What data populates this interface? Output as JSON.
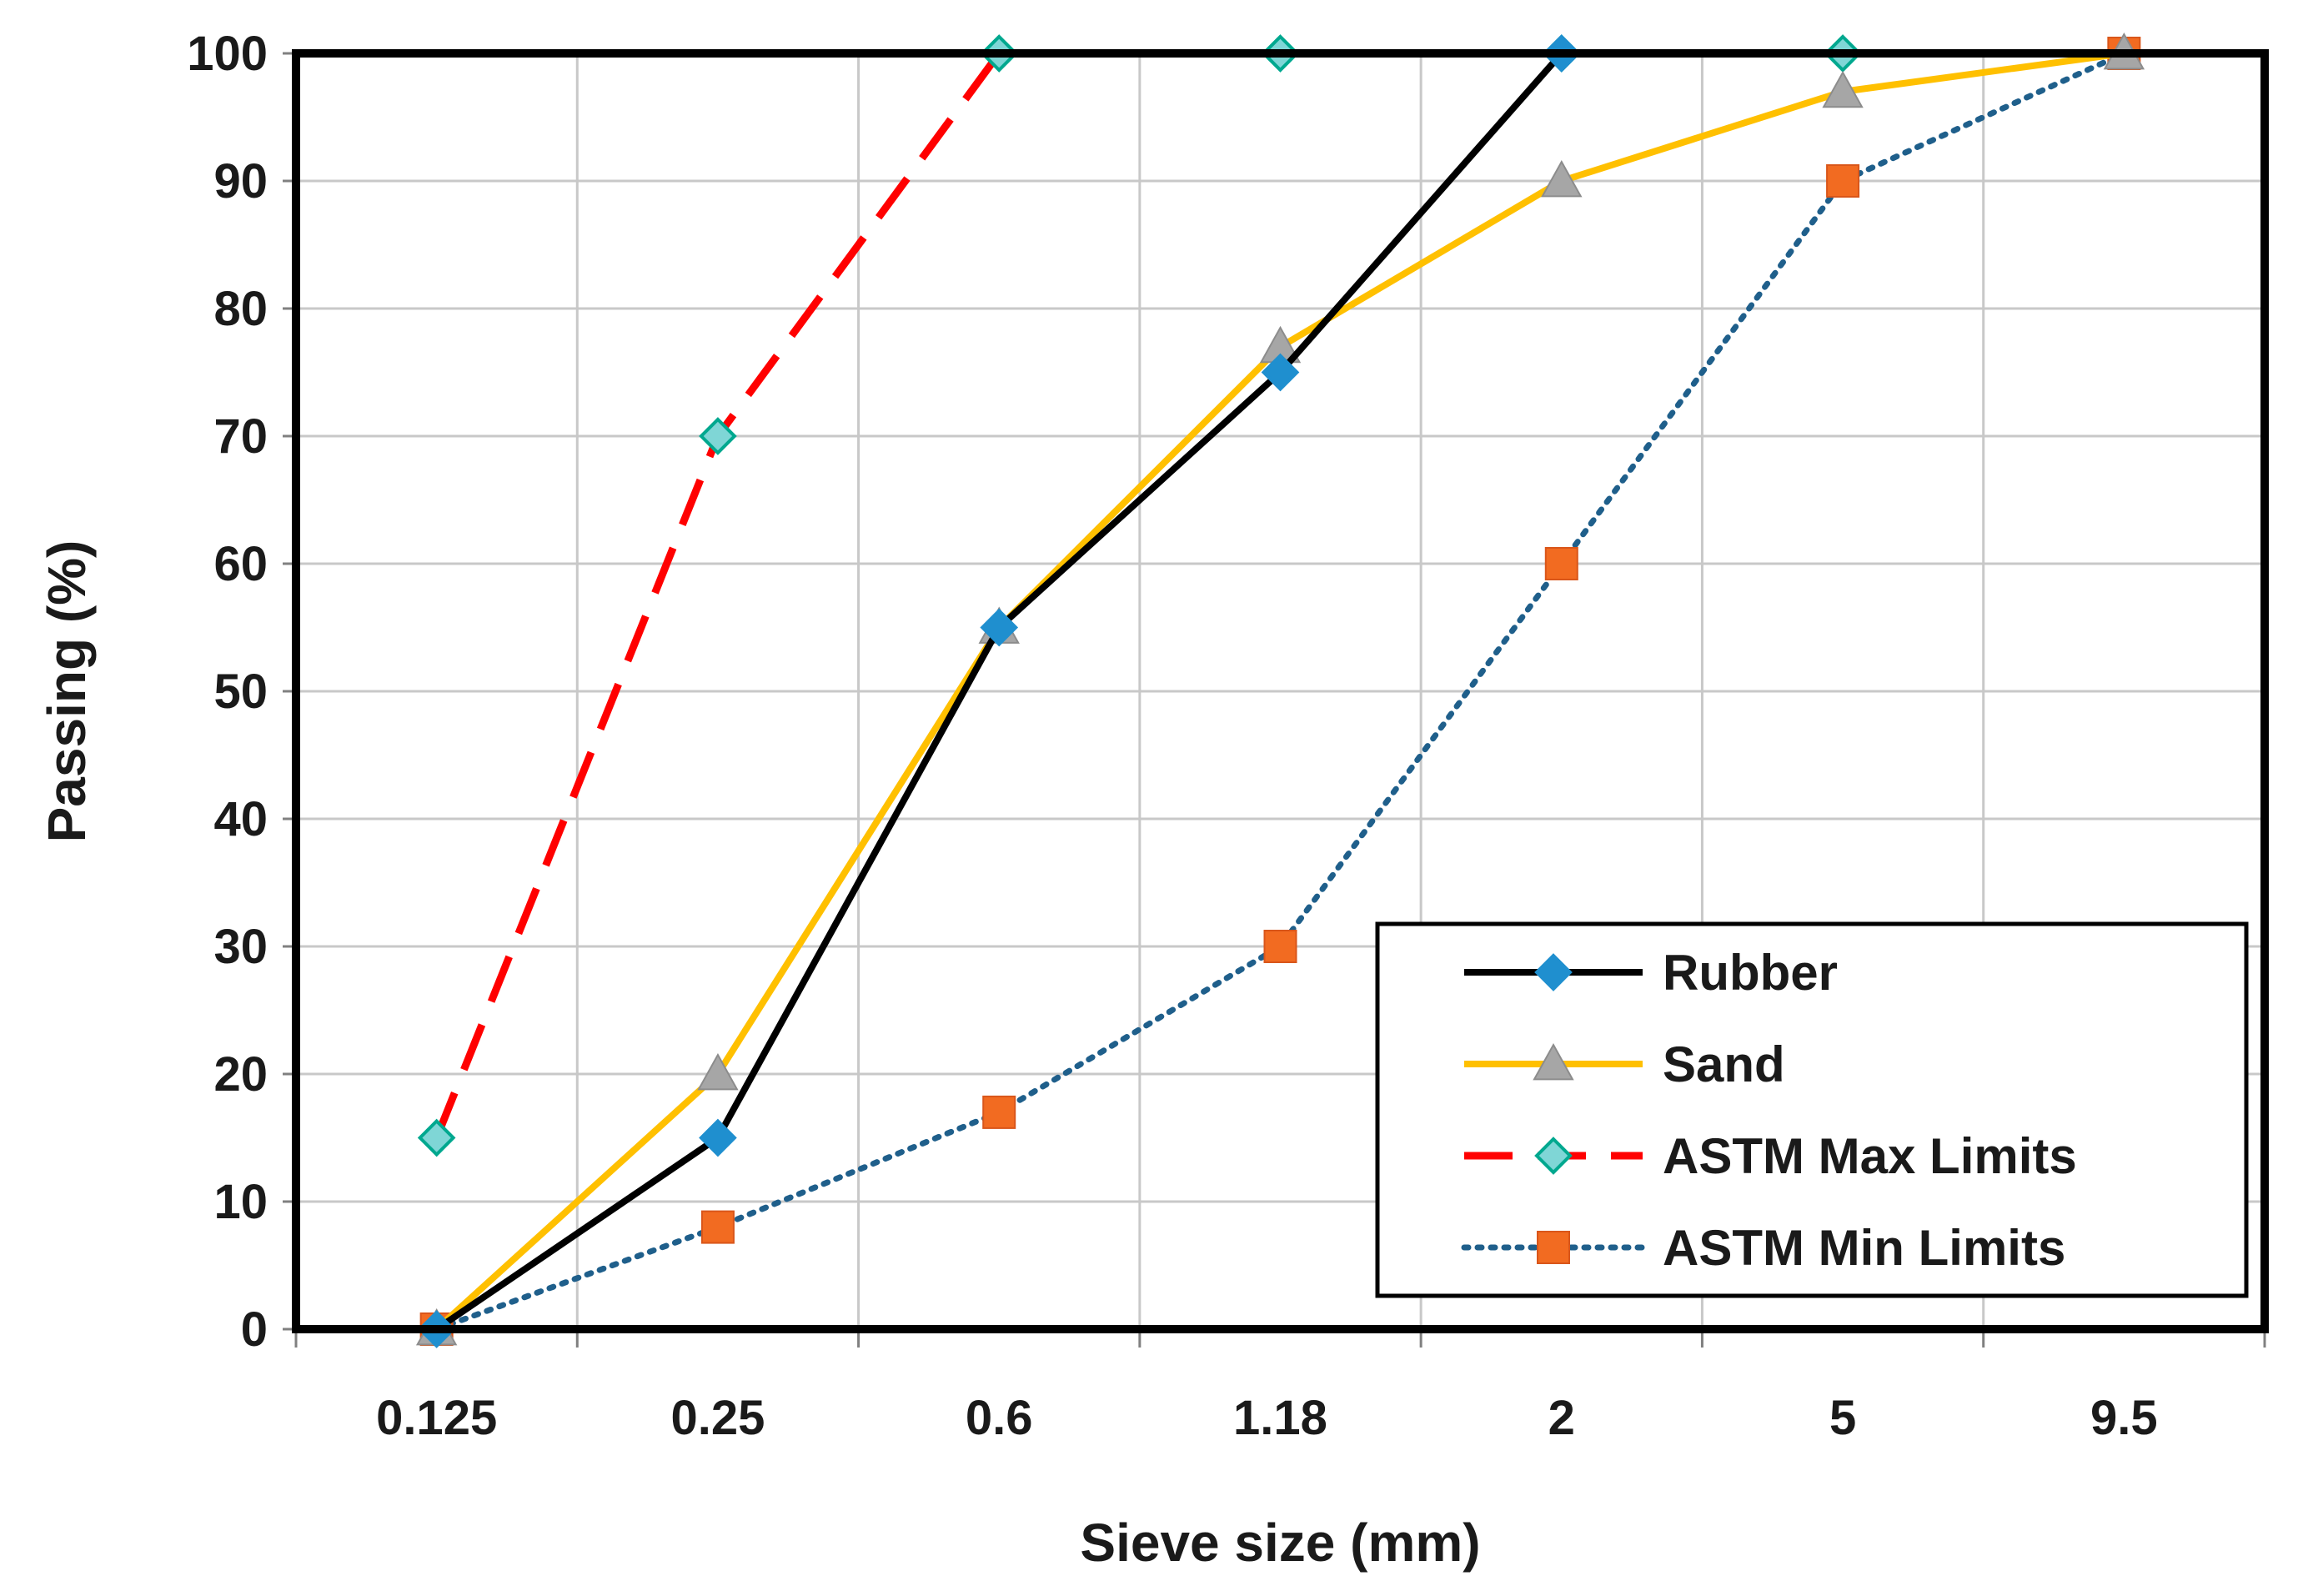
{
  "chart_data": {
    "type": "line",
    "title": "",
    "xlabel": "Sieve size (mm)",
    "ylabel": "Passing (%)",
    "categories": [
      "0.125",
      "0.25",
      "0.6",
      "1.18",
      "2",
      "5",
      "9.5"
    ],
    "ylim": [
      0,
      100
    ],
    "yticks": [
      "0",
      "10",
      "20",
      "30",
      "40",
      "50",
      "60",
      "70",
      "80",
      "90",
      "100"
    ],
    "grid": true,
    "legend_position": "bottom-right",
    "series": [
      {
        "name": "Rubber",
        "values": [
          0,
          15,
          55,
          75,
          100,
          null,
          null
        ],
        "color": "#000000",
        "marker": "diamond",
        "marker_color": "#1f8fcf",
        "line_style": "solid"
      },
      {
        "name": "Sand",
        "values": [
          0,
          20,
          55,
          77,
          90,
          97,
          100
        ],
        "color": "#ffc000",
        "marker": "triangle",
        "marker_color": "#a6a6a6",
        "line_style": "solid"
      },
      {
        "name": "ASTM Max Limits",
        "values": [
          15,
          70,
          100,
          100,
          100,
          100,
          null
        ],
        "color": "#ff0000",
        "marker": "diamond",
        "marker_color": "#7fd6d6",
        "marker_edge": "#00a88f",
        "line_style": "dashed"
      },
      {
        "name": "ASTM Min Limits",
        "values": [
          0,
          8,
          17,
          30,
          60,
          90,
          100
        ],
        "color": "#1f5f8b",
        "marker": "square",
        "marker_color": "#f26b21",
        "line_style": "dotted"
      }
    ]
  }
}
